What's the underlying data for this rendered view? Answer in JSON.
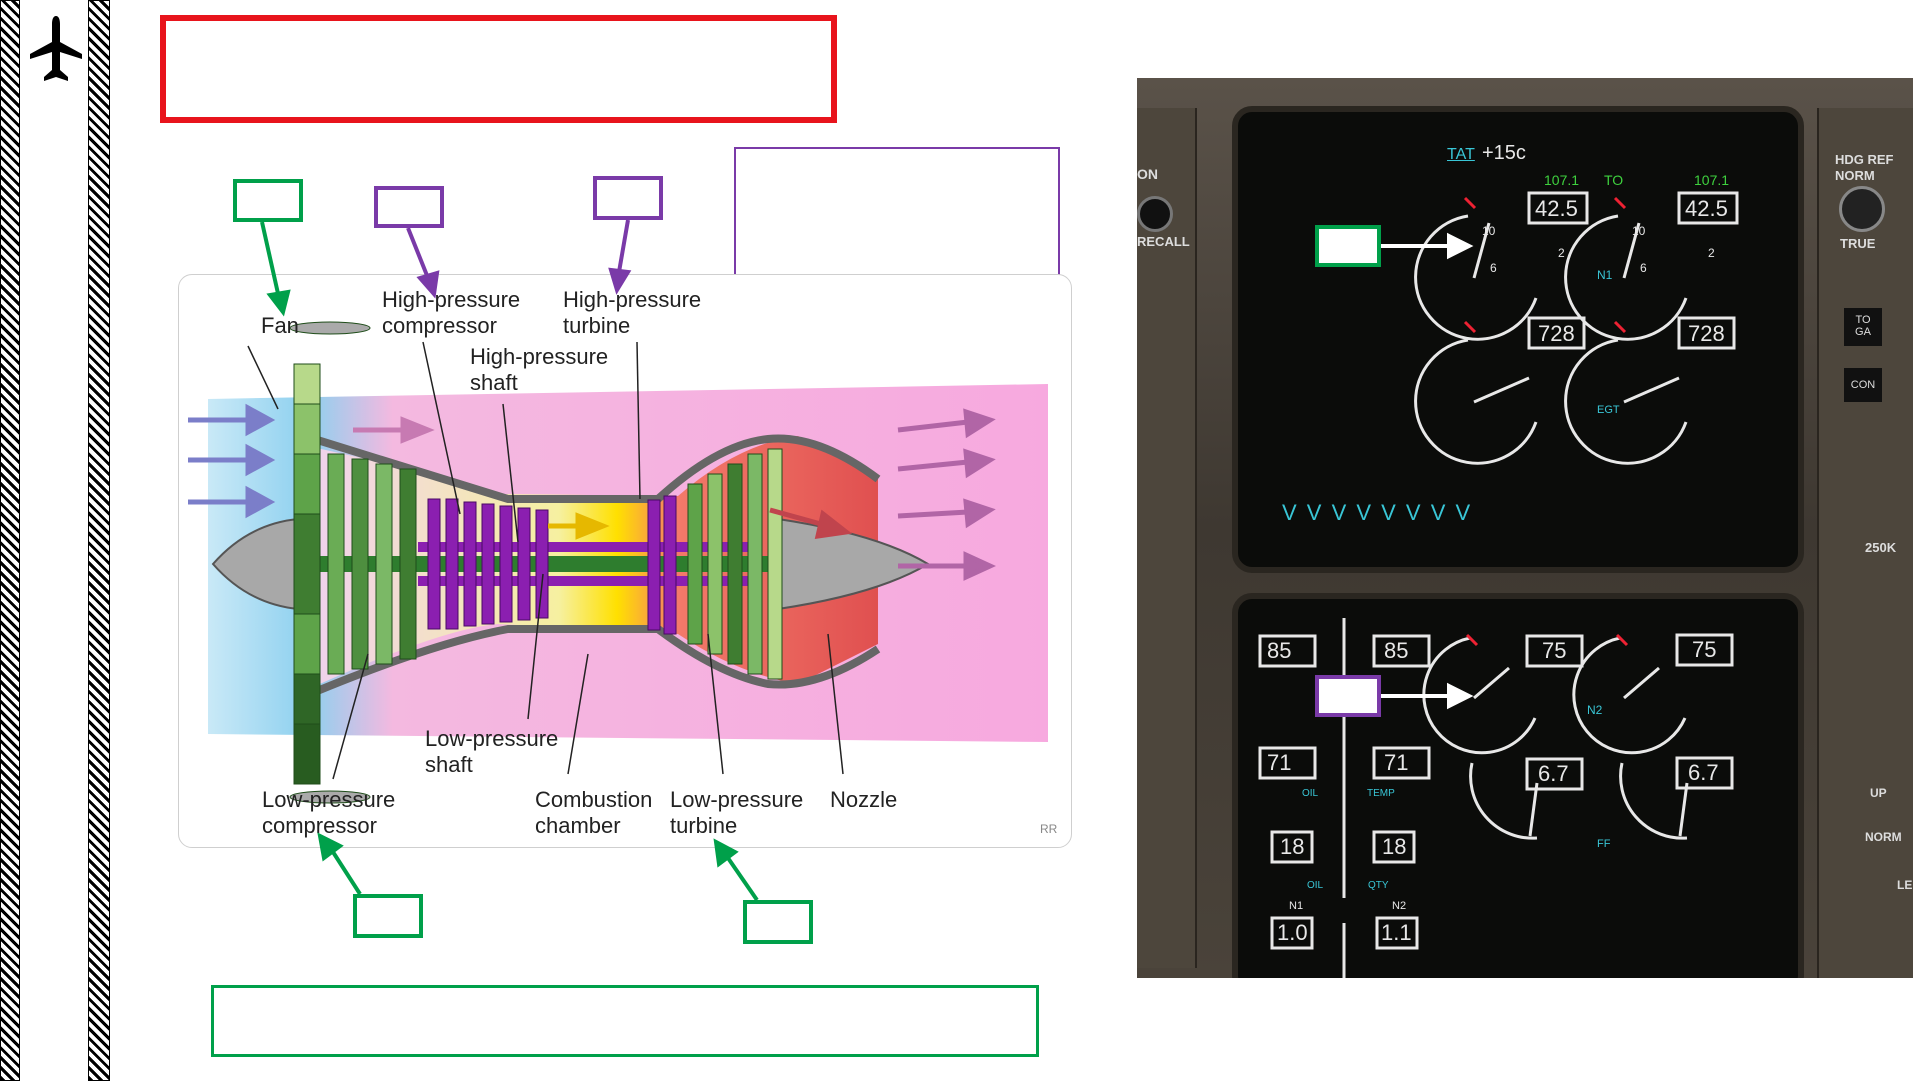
{
  "side_bar": {
    "icon": "airplane-icon"
  },
  "diagram": {
    "labels": {
      "fan": "Fan",
      "hp_compressor": "High-pressure\ncompressor",
      "hp_turbine": "High-pressure\nturbine",
      "hp_shaft": "High-pressure\nshaft",
      "lp_shaft": "Low-pressure\nshaft",
      "lp_compressor": "Low-pressure\ncompressor",
      "combustion": "Combustion\nchamber",
      "lp_turbine": "Low-pressure\nturbine",
      "nozzle": "Nozzle",
      "signature": "RR"
    }
  },
  "eicas_upper": {
    "tat_label": "TAT",
    "tat_value": "+15c",
    "n1_limit_left": "107.1",
    "thrust_mode": "TO",
    "n1_limit_right": "107.1",
    "n1_left": "42.5",
    "n1_right": "42.5",
    "n1_label": "N1",
    "egt_left": "728",
    "egt_right": "728",
    "egt_label": "EGT",
    "scale_10": "10",
    "scale_6": "6",
    "scale_2": "2",
    "chevrons": "V V V V V V V V"
  },
  "eicas_lower": {
    "n2_left": "75",
    "n2_right": "75",
    "n2_label": "N2",
    "oil_press_left": "85",
    "oil_press_right": "85",
    "oil_temp_left": "71",
    "oil_temp_right": "71",
    "oil_label": "OIL",
    "temp_label": "TEMP",
    "oil_qty_left": "18",
    "oil_qty_right": "18",
    "qty_label": "QTY",
    "ff_left": "6.7",
    "ff_right": "6.7",
    "ff_label": "FF",
    "vib_n1_label": "N1",
    "vib_n2_label": "N2",
    "vib_n1": "1.0",
    "vib_n2": "1.1"
  },
  "panel_left": {
    "on": "ON",
    "recall": "RECALL"
  },
  "panel_right": {
    "hdg_ref": "HDG REF",
    "norm": "NORM",
    "true": "TRUE",
    "toga": "TO\nGA",
    "con": "CON",
    "spd": "250K",
    "up": "UP",
    "norm2": "NORM",
    "le": "LE"
  }
}
